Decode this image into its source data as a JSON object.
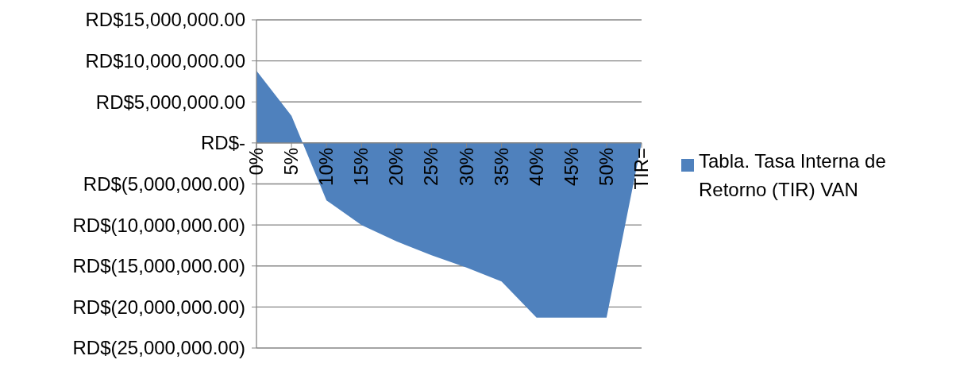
{
  "chart_data": {
    "type": "area",
    "categories": [
      "0%",
      "5%",
      "10%",
      "15%",
      "20%",
      "25%",
      "30%",
      "35%",
      "40%",
      "45%",
      "50%",
      "TIR="
    ],
    "series": [
      {
        "name": "Tabla. Tasa Interna de Retorno (TIR) VAN",
        "color": "#4f81bd",
        "values": [
          8800000,
          3300000,
          -7000000,
          -10000000,
          -12000000,
          -13700000,
          -15200000,
          -16900000,
          -21300000,
          -21300000,
          -21300000,
          0
        ]
      }
    ],
    "ylim": [
      -25000000,
      15000000
    ],
    "yticks": [
      {
        "value": -25000000,
        "label": "RD$(25,000,000.00)"
      },
      {
        "value": -20000000,
        "label": "RD$(20,000,000.00)"
      },
      {
        "value": -15000000,
        "label": "RD$(15,000,000.00)"
      },
      {
        "value": -10000000,
        "label": "RD$(10,000,000.00)"
      },
      {
        "value": -5000000,
        "label": "RD$(5,000,000.00)"
      },
      {
        "value": 0,
        "label": "RD$-"
      },
      {
        "value": 5000000,
        "label": "RD$5,000,000.00"
      },
      {
        "value": 10000000,
        "label": "RD$10,000,000.00"
      },
      {
        "value": 15000000,
        "label": "RD$15,000,000.00"
      }
    ],
    "grid": "y",
    "legend": "right"
  }
}
